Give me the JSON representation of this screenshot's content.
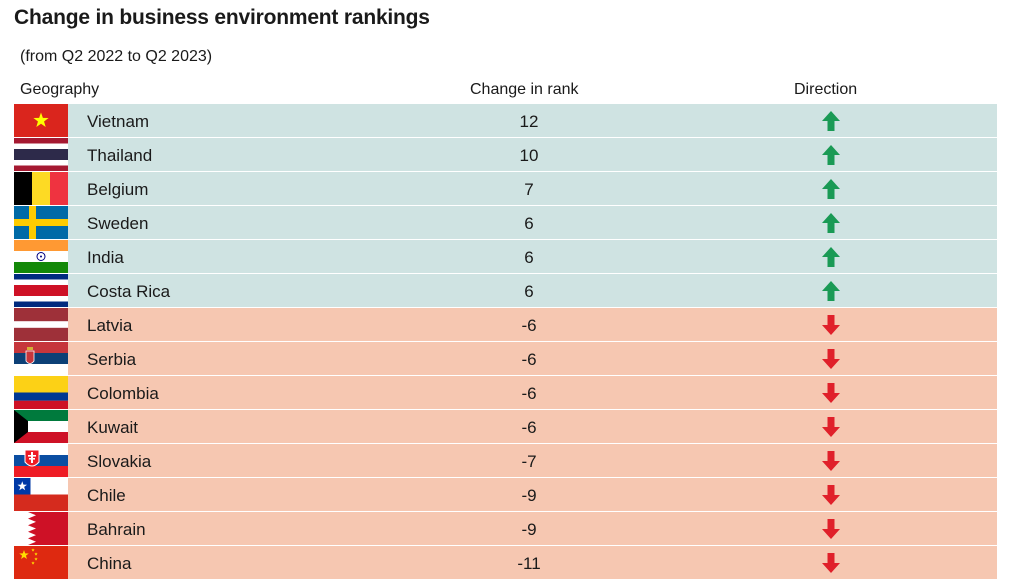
{
  "title": "Change in business environment rankings",
  "subtitle": "(from Q2 2022 to Q2 2023)",
  "headers": {
    "geography": "Geography",
    "change": "Change in rank",
    "direction": "Direction"
  },
  "colors": {
    "up_row": "#cfe3e2",
    "down_row": "#f6c7b1",
    "up_arrow": "#1a9a55",
    "down_arrow": "#e0202a"
  },
  "chart_data": {
    "type": "table",
    "title": "Change in business environment rankings",
    "subtitle": "(from Q2 2022 to Q2 2023)",
    "columns": [
      "Geography",
      "Change in rank",
      "Direction"
    ],
    "rows": [
      {
        "country": "Vietnam",
        "change": "12",
        "direction": "up",
        "flag": "vietnam"
      },
      {
        "country": "Thailand",
        "change": "10",
        "direction": "up",
        "flag": "thailand"
      },
      {
        "country": "Belgium",
        "change": "7",
        "direction": "up",
        "flag": "belgium"
      },
      {
        "country": "Sweden",
        "change": "6",
        "direction": "up",
        "flag": "sweden"
      },
      {
        "country": "India",
        "change": "6",
        "direction": "up",
        "flag": "india"
      },
      {
        "country": "Costa Rica",
        "change": "6",
        "direction": "up",
        "flag": "costa-rica"
      },
      {
        "country": "Latvia",
        "change": "-6",
        "direction": "down",
        "flag": "latvia"
      },
      {
        "country": "Serbia",
        "change": "-6",
        "direction": "down",
        "flag": "serbia"
      },
      {
        "country": "Colombia",
        "change": "-6",
        "direction": "down",
        "flag": "colombia"
      },
      {
        "country": "Kuwait",
        "change": "-6",
        "direction": "down",
        "flag": "kuwait"
      },
      {
        "country": "Slovakia",
        "change": "-7",
        "direction": "down",
        "flag": "slovakia"
      },
      {
        "country": "Chile",
        "change": "-9",
        "direction": "down",
        "flag": "chile"
      },
      {
        "country": "Bahrain",
        "change": "-9",
        "direction": "down",
        "flag": "bahrain"
      },
      {
        "country": "China",
        "change": "-11",
        "direction": "down",
        "flag": "china"
      }
    ]
  }
}
